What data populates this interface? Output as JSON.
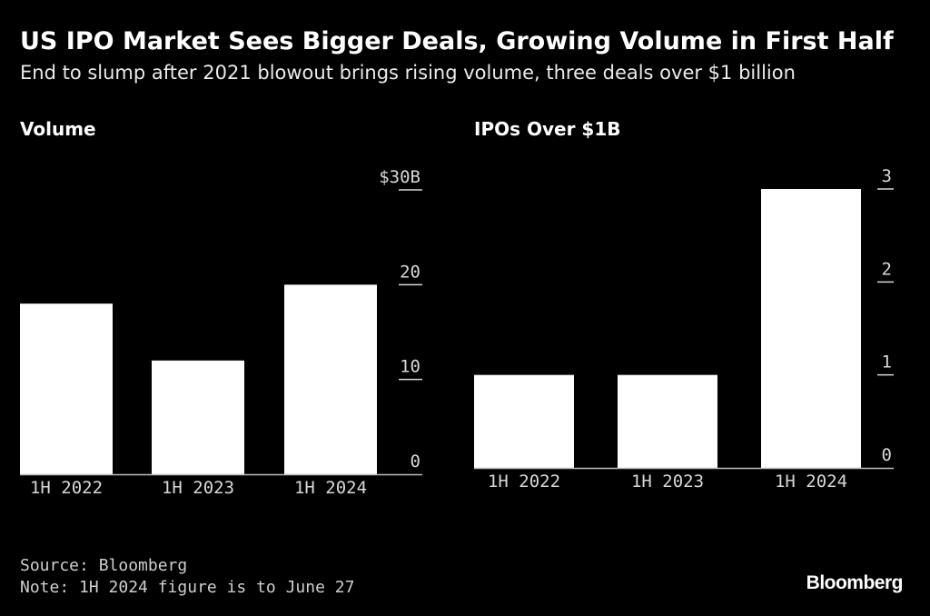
{
  "header": {
    "title": "US IPO Market Sees Bigger Deals, Growing Volume in First Half",
    "subtitle": "End to slump after 2021 blowout brings rising volume, three deals over $1 billion"
  },
  "chart_data": [
    {
      "type": "bar",
      "title": "Volume",
      "categories": [
        "1H 2022",
        "1H 2023",
        "1H 2024"
      ],
      "values": [
        18,
        12,
        20
      ],
      "ylim": [
        0,
        30
      ],
      "yticks": [
        0,
        10,
        20,
        30
      ],
      "ytick_labels": [
        "0",
        "10",
        "20",
        "$30B"
      ],
      "axis_side": "right",
      "grid": false,
      "bar_color": "#ffffff"
    },
    {
      "type": "bar",
      "title": "IPOs Over $1B",
      "categories": [
        "1H 2022",
        "1H 2023",
        "1H 2024"
      ],
      "values": [
        1,
        1,
        3
      ],
      "ylim": [
        0,
        3
      ],
      "yticks": [
        0,
        1,
        2,
        3
      ],
      "ytick_labels": [
        "0",
        "1",
        "2",
        "3"
      ],
      "axis_side": "right",
      "grid": false,
      "bar_color": "#ffffff"
    }
  ],
  "footer": {
    "source": "Source: Bloomberg",
    "note": "Note: 1H 2024 figure is to June 27",
    "brand": "Bloomberg"
  }
}
